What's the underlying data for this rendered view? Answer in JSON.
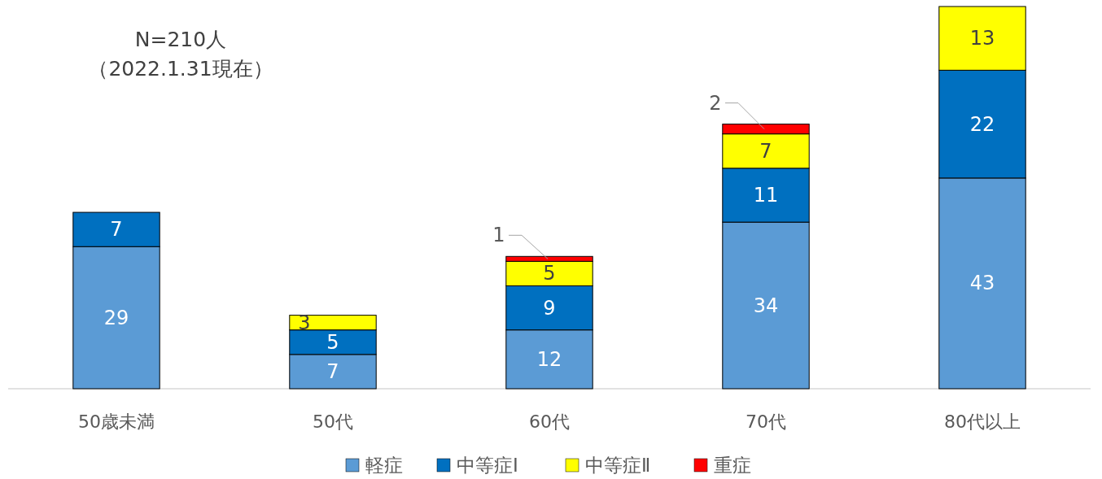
{
  "chart_data": {
    "type": "bar",
    "stacked": true,
    "data_labels": true,
    "legend": "bottom",
    "categories": [
      "50歳未満",
      "50代",
      "60代",
      "70代",
      "80代以上"
    ],
    "series": [
      {
        "name": "軽症",
        "color": "#5b9bd5",
        "values": [
          29,
          7,
          12,
          34,
          43
        ]
      },
      {
        "name": "中等症Ⅰ",
        "color": "#0070c0",
        "values": [
          7,
          5,
          9,
          11,
          22
        ]
      },
      {
        "name": "中等症Ⅱ",
        "color": "#ffff00",
        "values": [
          null,
          3,
          5,
          7,
          13
        ]
      },
      {
        "name": "重症",
        "color": "#ff0000",
        "values": [
          null,
          null,
          1,
          2,
          null
        ]
      }
    ],
    "annotations": [
      "N=210人",
      "（2022.1.31現在）"
    ]
  }
}
